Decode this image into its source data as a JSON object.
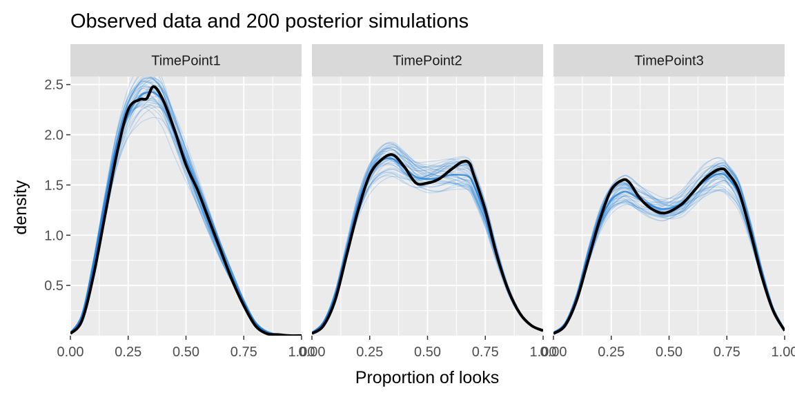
{
  "chart_data": {
    "type": "line",
    "title": "Observed data and 200 posterior simulations",
    "xlabel": "Proportion of looks",
    "ylabel": "density",
    "xlim": [
      0,
      1
    ],
    "ylim": [
      0,
      2.5
    ],
    "x_ticks": [
      "0.00",
      "0.25",
      "0.50",
      "0.75",
      "1.00"
    ],
    "y_ticks": [
      "0.5",
      "1.0",
      "1.5",
      "2.0",
      "2.5"
    ],
    "grid": true,
    "legend": "none",
    "simulations": 200,
    "colors": {
      "observed": "#000000",
      "simulated": "#1e7fd9",
      "panel_bg": "#ebebeb",
      "strip_bg": "#d9d9d9",
      "grid": "#ffffff"
    },
    "panels": [
      {
        "label": "TimePoint1",
        "x": [
          0,
          0.05,
          0.1,
          0.15,
          0.2,
          0.25,
          0.3,
          0.33,
          0.36,
          0.4,
          0.45,
          0.5,
          0.55,
          0.6,
          0.65,
          0.7,
          0.75,
          0.8,
          0.85,
          0.9,
          0.95,
          1.0
        ],
        "observed": [
          0.02,
          0.15,
          0.6,
          1.2,
          1.8,
          2.25,
          2.35,
          2.36,
          2.48,
          2.35,
          2.05,
          1.7,
          1.45,
          1.15,
          0.85,
          0.55,
          0.3,
          0.1,
          0.02,
          0.01,
          0,
          0
        ],
        "simulated_mean": [
          0.03,
          0.2,
          0.7,
          1.3,
          1.85,
          2.2,
          2.38,
          2.42,
          2.42,
          2.33,
          2.05,
          1.75,
          1.45,
          1.15,
          0.85,
          0.58,
          0.33,
          0.13,
          0.04,
          0.01,
          0,
          0
        ]
      },
      {
        "label": "TimePoint2",
        "x": [
          0,
          0.05,
          0.1,
          0.15,
          0.2,
          0.25,
          0.3,
          0.35,
          0.4,
          0.45,
          0.5,
          0.55,
          0.6,
          0.65,
          0.68,
          0.7,
          0.75,
          0.8,
          0.85,
          0.9,
          0.95,
          1.0
        ],
        "observed": [
          0.02,
          0.1,
          0.35,
          0.8,
          1.25,
          1.6,
          1.75,
          1.8,
          1.68,
          1.52,
          1.52,
          1.56,
          1.65,
          1.73,
          1.72,
          1.6,
          1.25,
          0.8,
          0.45,
          0.22,
          0.1,
          0.05
        ],
        "simulated_mean": [
          0.03,
          0.13,
          0.4,
          0.85,
          1.3,
          1.6,
          1.74,
          1.76,
          1.67,
          1.58,
          1.56,
          1.57,
          1.6,
          1.6,
          1.58,
          1.5,
          1.2,
          0.8,
          0.45,
          0.22,
          0.1,
          0.05
        ]
      },
      {
        "label": "TimePoint3",
        "x": [
          0,
          0.05,
          0.1,
          0.15,
          0.2,
          0.25,
          0.3,
          0.33,
          0.37,
          0.42,
          0.48,
          0.55,
          0.6,
          0.65,
          0.7,
          0.73,
          0.75,
          0.8,
          0.85,
          0.9,
          0.95,
          1.0
        ],
        "observed": [
          0.02,
          0.1,
          0.35,
          0.75,
          1.15,
          1.45,
          1.55,
          1.52,
          1.38,
          1.27,
          1.22,
          1.3,
          1.42,
          1.55,
          1.64,
          1.66,
          1.63,
          1.45,
          1.05,
          0.6,
          0.25,
          0.05
        ],
        "simulated_mean": [
          0.03,
          0.12,
          0.38,
          0.78,
          1.13,
          1.35,
          1.43,
          1.42,
          1.36,
          1.3,
          1.26,
          1.31,
          1.42,
          1.53,
          1.6,
          1.61,
          1.58,
          1.42,
          1.05,
          0.62,
          0.26,
          0.06
        ]
      }
    ]
  }
}
